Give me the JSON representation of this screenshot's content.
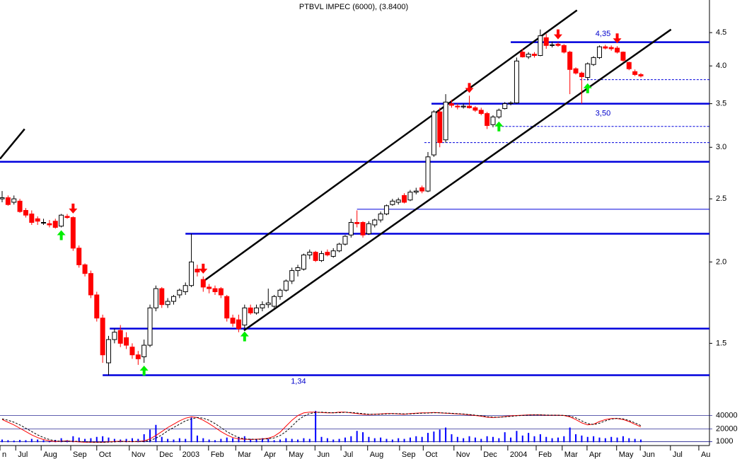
{
  "chart_data": {
    "type": "candlestick",
    "title": "PTBVL IMPEC (6000), (3.8400)",
    "x": [
      0,
      1,
      2,
      3,
      4,
      5,
      6,
      7,
      8,
      9,
      10,
      11,
      12,
      13,
      14,
      15,
      16,
      17,
      18,
      19,
      20,
      21,
      22,
      23,
      24,
      25,
      26,
      27,
      28,
      29,
      30,
      31,
      32,
      33,
      34,
      35,
      36,
      37,
      38,
      39,
      40,
      41,
      42,
      43,
      44,
      45,
      46,
      47,
      48,
      49,
      50,
      51,
      52,
      53,
      54,
      55,
      56,
      57,
      58,
      59,
      60,
      61,
      62,
      63,
      64,
      65,
      66,
      67,
      68,
      69,
      70,
      71,
      72,
      73,
      74,
      75,
      76,
      77,
      78,
      79,
      80,
      81,
      82,
      83,
      84,
      85,
      86,
      87,
      88,
      89,
      90,
      91,
      92,
      93,
      94,
      95,
      96,
      97,
      98,
      99,
      100,
      101,
      102,
      103,
      104,
      105,
      106,
      107,
      108
    ],
    "open": [
      2.5,
      2.51,
      2.47,
      2.48,
      2.4,
      2.37,
      2.33,
      2.3,
      2.29,
      2.31,
      2.27,
      2.35,
      2.34,
      2.1,
      1.98,
      1.92,
      1.78,
      1.64,
      1.4,
      1.52,
      1.57,
      1.53,
      1.48,
      1.44,
      1.43,
      1.49,
      1.7,
      1.82,
      1.72,
      1.74,
      1.78,
      1.8,
      1.84,
      1.95,
      1.88,
      1.83,
      1.82,
      1.82,
      1.77,
      1.64,
      1.63,
      1.6,
      1.7,
      1.67,
      1.7,
      1.72,
      1.71,
      1.77,
      1.81,
      1.87,
      1.94,
      1.95,
      2.05,
      2.07,
      2.01,
      2.07,
      2.04,
      2.08,
      2.13,
      2.2,
      2.3,
      2.3,
      2.21,
      2.28,
      2.32,
      2.37,
      2.45,
      2.47,
      2.53,
      2.49,
      2.56,
      2.6,
      2.57,
      2.92,
      3.4,
      3.08,
      3.5,
      3.47,
      3.46,
      3.47,
      3.45,
      3.42,
      3.38,
      3.25,
      3.34,
      3.44,
      3.5,
      3.51,
      4.2,
      4.13,
      4.17,
      4.15,
      4.42,
      4.3,
      4.32,
      4.3,
      4.2,
      3.96,
      3.9,
      3.84,
      4.02,
      4.12,
      4.28,
      4.27,
      4.26,
      4.2,
      4.05,
      3.92,
      3.88
    ],
    "high": [
      2.57,
      2.53,
      2.53,
      2.5,
      2.42,
      2.4,
      2.35,
      2.33,
      2.32,
      2.33,
      2.37,
      2.37,
      2.35,
      2.12,
      1.99,
      1.94,
      1.8,
      1.66,
      1.54,
      1.58,
      1.6,
      1.56,
      1.5,
      1.46,
      1.52,
      1.72,
      1.84,
      1.83,
      1.76,
      1.78,
      1.82,
      1.86,
      2.21,
      1.98,
      1.9,
      1.85,
      1.84,
      1.83,
      1.78,
      1.66,
      1.66,
      1.72,
      1.72,
      1.72,
      1.74,
      1.82,
      1.78,
      1.82,
      1.88,
      1.96,
      1.98,
      2.06,
      2.09,
      2.08,
      2.08,
      2.09,
      2.1,
      2.14,
      2.2,
      2.33,
      2.4,
      2.31,
      2.31,
      2.33,
      2.39,
      2.45,
      2.5,
      2.51,
      2.55,
      2.58,
      2.6,
      2.62,
      2.95,
      3.42,
      3.45,
      3.62,
      3.55,
      3.5,
      3.5,
      3.6,
      3.47,
      3.45,
      3.4,
      3.36,
      3.44,
      3.52,
      3.53,
      4.12,
      4.25,
      4.2,
      4.2,
      4.55,
      4.48,
      4.36,
      4.35,
      4.32,
      4.22,
      3.98,
      3.92,
      4.05,
      4.14,
      4.3,
      4.31,
      4.3,
      4.29,
      4.21,
      4.06,
      3.95,
      3.9
    ],
    "low": [
      2.47,
      2.44,
      2.45,
      2.38,
      2.34,
      2.28,
      2.28,
      2.28,
      2.26,
      2.25,
      2.26,
      2.33,
      2.08,
      1.96,
      1.9,
      1.76,
      1.62,
      1.4,
      1.34,
      1.5,
      1.48,
      1.47,
      1.42,
      1.39,
      1.4,
      1.48,
      1.68,
      1.7,
      1.7,
      1.72,
      1.76,
      1.78,
      1.83,
      1.9,
      1.8,
      1.79,
      1.78,
      1.76,
      1.62,
      1.59,
      1.56,
      1.58,
      1.66,
      1.66,
      1.68,
      1.7,
      1.7,
      1.75,
      1.8,
      1.85,
      1.9,
      1.94,
      2.02,
      2.0,
      2.0,
      2.04,
      2.03,
      2.07,
      2.12,
      2.18,
      2.26,
      2.18,
      2.2,
      2.26,
      2.3,
      2.36,
      2.44,
      2.45,
      2.46,
      2.48,
      2.54,
      2.55,
      2.56,
      2.9,
      3.0,
      3.05,
      3.45,
      3.43,
      3.44,
      3.44,
      3.4,
      3.36,
      3.2,
      3.22,
      3.32,
      3.43,
      3.48,
      3.5,
      4.12,
      4.1,
      4.12,
      4.14,
      4.25,
      4.27,
      4.28,
      4.18,
      3.62,
      3.88,
      3.5,
      3.8,
      4.0,
      4.1,
      4.24,
      4.22,
      4.18,
      4.06,
      3.94,
      3.86,
      3.84
    ],
    "close": [
      2.51,
      2.45,
      2.5,
      2.39,
      2.36,
      2.3,
      2.31,
      2.3,
      2.28,
      2.26,
      2.36,
      2.34,
      2.1,
      1.98,
      1.92,
      1.78,
      1.64,
      1.44,
      1.52,
      1.56,
      1.5,
      1.49,
      1.44,
      1.42,
      1.49,
      1.7,
      1.82,
      1.72,
      1.74,
      1.77,
      1.81,
      1.84,
      2.0,
      1.93,
      1.83,
      1.82,
      1.8,
      1.78,
      1.64,
      1.61,
      1.58,
      1.7,
      1.67,
      1.7,
      1.72,
      1.73,
      1.77,
      1.81,
      1.87,
      1.94,
      1.96,
      2.05,
      2.07,
      2.01,
      2.06,
      2.05,
      2.08,
      2.13,
      2.19,
      2.3,
      2.29,
      2.2,
      2.29,
      2.32,
      2.37,
      2.44,
      2.48,
      2.49,
      2.47,
      2.56,
      2.57,
      2.57,
      2.9,
      3.4,
      3.05,
      3.52,
      3.48,
      3.46,
      3.47,
      3.45,
      3.42,
      3.38,
      3.24,
      3.34,
      3.42,
      3.5,
      3.51,
      4.07,
      4.13,
      4.17,
      4.15,
      4.45,
      4.3,
      4.31,
      4.3,
      4.2,
      3.95,
      3.9,
      3.85,
      4.03,
      4.12,
      4.28,
      4.26,
      4.25,
      4.2,
      4.08,
      3.96,
      3.88,
      3.86
    ],
    "volume": [
      4000,
      3000,
      2500,
      3500,
      3000,
      5000,
      4000,
      3000,
      2000,
      3500,
      6000,
      3000,
      9000,
      7000,
      5000,
      6000,
      8000,
      9000,
      7000,
      5000,
      4000,
      5000,
      6000,
      5000,
      12000,
      19000,
      26000,
      8000,
      5000,
      4000,
      6000,
      5000,
      37000,
      10000,
      6000,
      4000,
      3000,
      5000,
      7000,
      6000,
      8000,
      9000,
      5000,
      4000,
      6000,
      5000,
      3000,
      4000,
      6000,
      5000,
      4000,
      6000,
      5000,
      47000,
      8000,
      6000,
      4000,
      5000,
      7000,
      9000,
      17000,
      15000,
      8000,
      6000,
      7000,
      5000,
      4000,
      6000,
      5000,
      7000,
      9000,
      8000,
      14000,
      16000,
      19000,
      22000,
      12000,
      8000,
      6000,
      9000,
      7000,
      5000,
      9000,
      8000,
      6000,
      15000,
      7000,
      17000,
      10000,
      14000,
      9000,
      12000,
      8000,
      6000,
      7000,
      9000,
      22000,
      12000,
      10000,
      8000,
      9000,
      7000,
      6000,
      8000,
      7000,
      9000,
      6000,
      5000,
      4000
    ],
    "oscillator": [
      {
        "color": "#ff0000",
        "dash": false,
        "values": [
          34000,
          30000,
          26000,
          21000,
          16000,
          11000,
          7000,
          4000,
          2000,
          1000,
          1500,
          2000,
          1000,
          500,
          0,
          0,
          0,
          0,
          500,
          1000,
          1500,
          1000,
          800,
          1000,
          2000,
          5000,
          10000,
          16000,
          22000,
          27000,
          32000,
          36000,
          38000,
          37000,
          33000,
          28000,
          22000,
          16000,
          11000,
          7000,
          5000,
          4500,
          4000,
          4500,
          5000,
          6000,
          9000,
          15000,
          24000,
          33000,
          40000,
          44000,
          45000,
          45000,
          44500,
          44000,
          44000,
          45000,
          45000,
          44000,
          43000,
          42000,
          41500,
          42000,
          42500,
          43000,
          43000,
          42500,
          42000,
          43000,
          43500,
          44000,
          44000,
          44500,
          44000,
          43500,
          43000,
          42500,
          42000,
          41000,
          40000,
          39000,
          37500,
          37000,
          37500,
          38500,
          39500,
          40000,
          40500,
          41000,
          41000,
          41000,
          40500,
          40500,
          40500,
          40000,
          38000,
          34000,
          29000,
          26000,
          27000,
          31000,
          34000,
          35500,
          35500,
          34000,
          31000,
          27000,
          23000
        ]
      },
      {
        "color": "#000000",
        "dash": true,
        "values": [
          35000,
          33000,
          30000,
          26000,
          21000,
          16000,
          11000,
          7000,
          4000,
          2000,
          1500,
          1500,
          1500,
          1000,
          600,
          200,
          0,
          0,
          200,
          600,
          1000,
          1200,
          1000,
          1000,
          1200,
          2500,
          6000,
          11000,
          17000,
          22000,
          27000,
          32000,
          35000,
          37000,
          36000,
          33000,
          28000,
          22000,
          16000,
          11000,
          7000,
          5000,
          4500,
          4200,
          4500,
          5200,
          6500,
          10000,
          16000,
          24000,
          33000,
          39000,
          43000,
          44500,
          45000,
          44500,
          44200,
          44300,
          44800,
          44500,
          43800,
          42800,
          42000,
          41800,
          42000,
          42500,
          42800,
          42800,
          42400,
          42400,
          43000,
          43500,
          43800,
          44200,
          44200,
          43800,
          43300,
          42800,
          42300,
          41500,
          40600,
          39600,
          38300,
          37600,
          37500,
          38000,
          38800,
          39600,
          40200,
          40700,
          41000,
          41000,
          40700,
          40600,
          40500,
          40300,
          39200,
          36500,
          32000,
          28000,
          26500,
          28500,
          32000,
          34800,
          35800,
          35000,
          32500,
          29000,
          25000
        ]
      }
    ],
    "log_scale": true,
    "ylim": [
      1.19,
      5.05
    ],
    "yticks": [
      1.5,
      {
        "value": 2,
        "label": "2.0"
      },
      2.5,
      {
        "value": 3,
        "label": "3.0"
      },
      3.5,
      {
        "value": 4,
        "label": "4.0"
      },
      4.5
    ],
    "xlim": [
      -0.36,
      119.6
    ],
    "xticks": [
      {
        "value": -0.36,
        "label": "n"
      },
      {
        "value": 2.3,
        "label": "Jul"
      },
      {
        "value": 6.6,
        "label": "Aug"
      },
      {
        "value": 11.6,
        "label": "Sep"
      },
      {
        "value": 16.0,
        "label": "Oct"
      },
      {
        "value": 21.5,
        "label": "Nov"
      },
      {
        "value": 26.2,
        "label": "Dec"
      },
      {
        "value": 30.1,
        "label": "2003"
      },
      {
        "value": 34.9,
        "label": "Feb"
      },
      {
        "value": 39.5,
        "label": "Mar"
      },
      {
        "value": 43.9,
        "label": "Apr"
      },
      {
        "value": 48.1,
        "label": "May"
      },
      {
        "value": 52.9,
        "label": "Jun"
      },
      {
        "value": 57.3,
        "label": "Jul"
      },
      {
        "value": 61.8,
        "label": "Aug"
      },
      {
        "value": 67.2,
        "label": "Sep"
      },
      {
        "value": 71.2,
        "label": "Oct"
      },
      {
        "value": 76.4,
        "label": "Nov"
      },
      {
        "value": 81.0,
        "label": "Dec"
      },
      {
        "value": 85.5,
        "label": "2004"
      },
      {
        "value": 90.3,
        "label": "Feb"
      },
      {
        "value": 94.7,
        "label": "Mar"
      },
      {
        "value": 98.9,
        "label": "Apr"
      },
      {
        "value": 103.9,
        "label": "May"
      },
      {
        "value": 107.9,
        "label": "Jun"
      },
      {
        "value": 113.0,
        "label": "Jul"
      },
      {
        "value": 117.8,
        "label": "Au"
      }
    ],
    "volume_ylim": [
      -5000,
      48000
    ],
    "volume_ticks": [
      40000,
      20000,
      1000
    ],
    "up_color": "#ffffff",
    "down_color": "#ff0000",
    "volume_color": "#0000ff",
    "level_color": "#0000dd",
    "levels": [
      {
        "value": 4.35,
        "from": 86.0,
        "style": "thick"
      },
      {
        "value": 3.5,
        "from": 72.6,
        "style": "thick"
      },
      {
        "value": 2.85,
        "from": -0.36,
        "style": "thick"
      },
      {
        "value": 2.21,
        "from": 31.0,
        "style": "thick"
      },
      {
        "value": 1.58,
        "from": 18.2,
        "style": "thick"
      },
      {
        "value": 1.34,
        "from": 17.0,
        "style": "thick"
      },
      {
        "value": 2.41,
        "from": 60.0,
        "style": "thin"
      },
      {
        "value": 3.81,
        "from": 97.7,
        "style": "dashed"
      },
      {
        "value": 3.23,
        "from": 84.5,
        "style": "dashed"
      },
      {
        "value": 3.05,
        "from": 71.4,
        "style": "dashed"
      }
    ],
    "trendlines": [
      {
        "x": [
          34.1,
          97.2
        ],
        "y": [
          1.87,
          4.87
        ]
      },
      {
        "x": [
          40.9,
          113.1
        ],
        "y": [
          1.57,
          4.55
        ]
      },
      {
        "x": [
          -0.36,
          3.8
        ],
        "y": [
          2.88,
          3.2
        ]
      }
    ],
    "sell_signals": [
      12,
      34,
      79,
      94,
      104
    ],
    "buy_signals": [
      10,
      24,
      41,
      84,
      99
    ],
    "annotations": [
      {
        "text": "4,35",
        "x": 101.6,
        "y": 4.48
      },
      {
        "text": "3,50",
        "x": 101.6,
        "y": 3.38
      },
      {
        "text": "1,34",
        "x": 50.1,
        "y": 1.31
      }
    ]
  }
}
